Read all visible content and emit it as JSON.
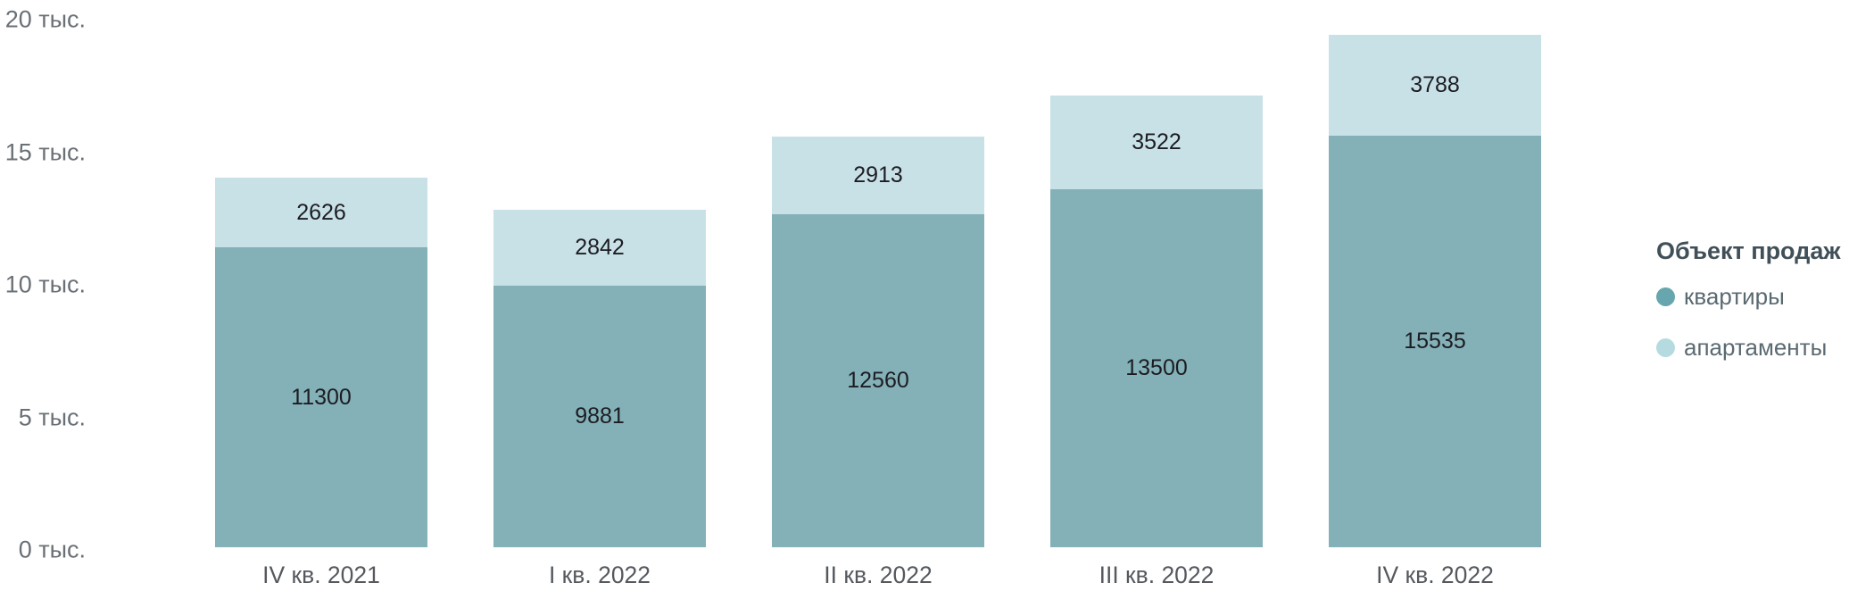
{
  "chart_data": {
    "type": "bar",
    "stacked": true,
    "orientation": "vertical",
    "categories": [
      "IV кв. 2021",
      "I кв. 2022",
      "II кв. 2022",
      "III кв. 2022",
      "IV кв. 2022"
    ],
    "series": [
      {
        "name": "квартиры",
        "color": "#83b1b7",
        "legend_dot_color": "#67a6ae",
        "values": [
          11300,
          9881,
          12560,
          13500,
          15535
        ]
      },
      {
        "name": "апартаменты",
        "color": "#c8e1e7",
        "legend_dot_color": "#b5dbe1",
        "values": [
          2626,
          2842,
          2913,
          3522,
          3788
        ]
      }
    ],
    "data_labels_visible": true,
    "y_axis": {
      "tick_labels": [
        "0 тыс.",
        "5 тыс.",
        "10 тыс.",
        "15 тыс.",
        "20 тыс."
      ],
      "tick_values": [
        0,
        5000,
        10000,
        15000,
        20000
      ],
      "ylim": [
        0,
        20000
      ]
    },
    "legend": {
      "title": "Объект продаж",
      "position": "right"
    },
    "grid": false,
    "background_color": "#ffffff",
    "data_label_color": "#1c1d22",
    "axis_label_color": "#6a7076"
  }
}
